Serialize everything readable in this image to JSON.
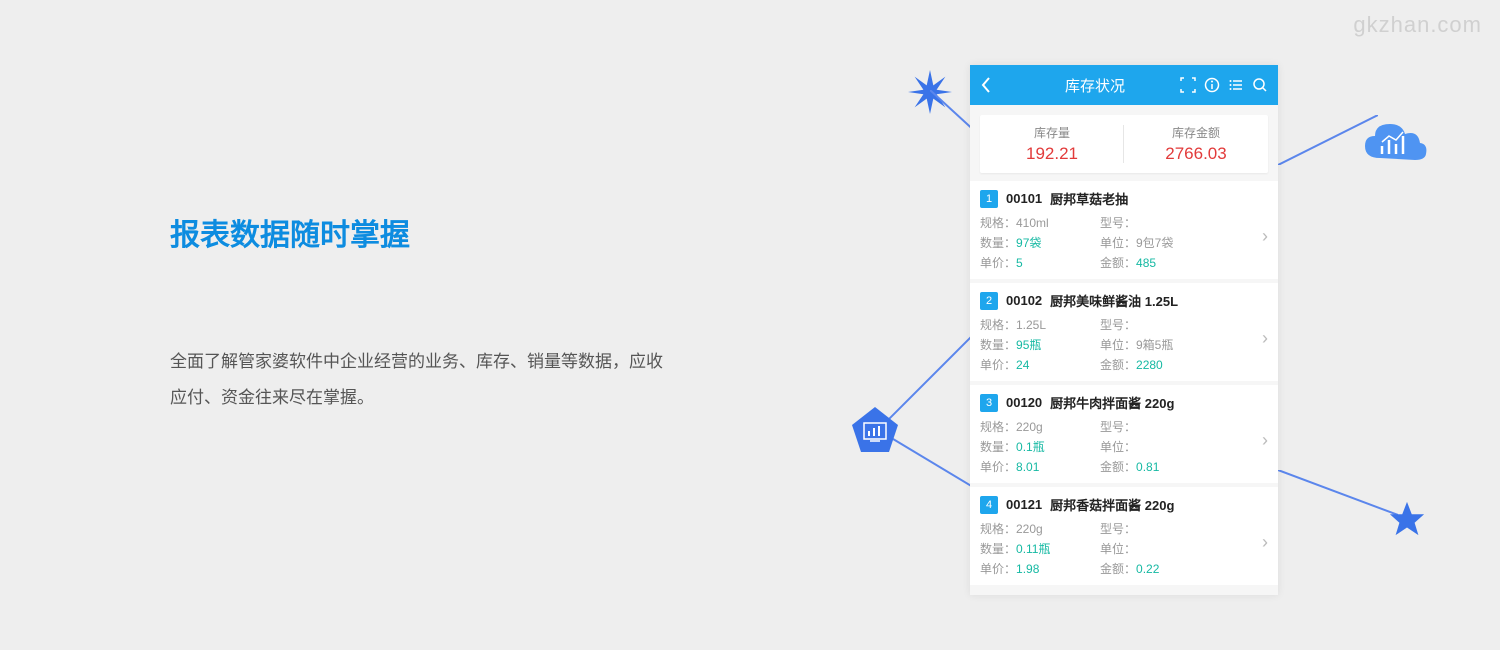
{
  "watermark": "gkzhan.com",
  "heading": "报表数据随时掌握",
  "description": "全面了解管家婆软件中企业经营的业务、库存、销量等数据，应收应付、资金往来尽在掌握。",
  "phone": {
    "title": "库存状况",
    "summary": [
      {
        "label": "库存量",
        "value": "192.21"
      },
      {
        "label": "库存金额",
        "value": "2766.03"
      }
    ],
    "items": [
      {
        "num": "1",
        "code": "00101",
        "name": "厨邦草菇老抽",
        "spec": "410ml",
        "model": "",
        "qty": "97袋",
        "unit": "9包7袋",
        "price": "5",
        "amount": "485"
      },
      {
        "num": "2",
        "code": "00102",
        "name": "厨邦美味鲜酱油 1.25L",
        "spec": "1.25L",
        "model": "",
        "qty": "95瓶",
        "unit": "9箱5瓶",
        "price": "24",
        "amount": "2280"
      },
      {
        "num": "3",
        "code": "00120",
        "name": "厨邦牛肉拌面酱 220g",
        "spec": "220g",
        "model": "",
        "qty": "0.1瓶",
        "unit": "",
        "price": "8.01",
        "amount": "0.81"
      },
      {
        "num": "4",
        "code": "00121",
        "name": "厨邦香菇拌面酱 220g",
        "spec": "220g",
        "model": "",
        "qty": "0.11瓶",
        "unit": "",
        "price": "1.98",
        "amount": "0.22"
      }
    ],
    "labels": {
      "spec": "规格：",
      "model": "型号：",
      "qty": "数量：",
      "unit": "单位：",
      "price": "单价：",
      "amount": "金额："
    }
  },
  "colors": {
    "accent": "#1ea6ed",
    "decoBlue": "#3a73e8",
    "red": "#e23a3a",
    "teal": "#16b9a3"
  }
}
